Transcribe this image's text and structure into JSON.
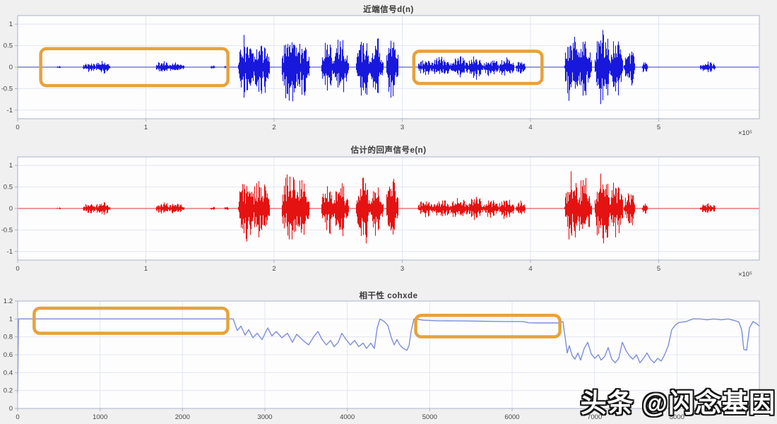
{
  "figure": {
    "background": "#f0f0f0",
    "plot_background": "#fdfdfe",
    "grid_color": "#e2e6f0",
    "border_color": "#a9b3c9",
    "tick_color": "#444444",
    "highlight_color": "#e7a23b"
  },
  "watermark": {
    "text": "头条 @闪念基因"
  },
  "chart_data": [
    {
      "type": "line",
      "id": "near-end-signal",
      "title": "近端信号d(n)",
      "color": "#1818dd",
      "xlim": [
        0,
        5.785
      ],
      "ylim": [
        -1.2,
        1.2
      ],
      "xticks": [
        0,
        1,
        2,
        3,
        4,
        5
      ],
      "xtick_labels": [
        "0",
        "1",
        "2",
        "3",
        "4",
        "5"
      ],
      "yticks": [
        -1,
        -0.5,
        0,
        0.5,
        1
      ],
      "ytick_labels": [
        "-1",
        "-0.5",
        "0",
        "0.5",
        "1"
      ],
      "exponent_label": "×10⁵",
      "bursts": [
        {
          "x": 0.32,
          "w": 0.03,
          "a": 0.03
        },
        {
          "x": 0.56,
          "w": 0.09,
          "a": 0.13
        },
        {
          "x": 0.66,
          "w": 0.1,
          "a": 0.16
        },
        {
          "x": 1.13,
          "w": 0.09,
          "a": 0.16
        },
        {
          "x": 1.23,
          "w": 0.11,
          "a": 0.13
        },
        {
          "x": 1.52,
          "w": 0.03,
          "a": 0.05
        },
        {
          "x": 1.63,
          "w": 0.03,
          "a": 0.06
        },
        {
          "x": 1.78,
          "w": 0.1,
          "a": 0.85
        },
        {
          "x": 1.89,
          "w": 0.12,
          "a": 0.72
        },
        {
          "x": 2.12,
          "w": 0.1,
          "a": 0.9
        },
        {
          "x": 2.22,
          "w": 0.09,
          "a": 0.78
        },
        {
          "x": 2.42,
          "w": 0.09,
          "a": 0.65
        },
        {
          "x": 2.52,
          "w": 0.1,
          "a": 0.72
        },
        {
          "x": 2.7,
          "w": 0.1,
          "a": 0.85
        },
        {
          "x": 2.8,
          "w": 0.08,
          "a": 0.72
        },
        {
          "x": 2.92,
          "w": 0.08,
          "a": 0.8
        },
        {
          "x": 3.18,
          "w": 0.1,
          "a": 0.22
        },
        {
          "x": 3.3,
          "w": 0.12,
          "a": 0.25
        },
        {
          "x": 3.44,
          "w": 0.12,
          "a": 0.28
        },
        {
          "x": 3.57,
          "w": 0.1,
          "a": 0.3
        },
        {
          "x": 3.69,
          "w": 0.1,
          "a": 0.24
        },
        {
          "x": 3.81,
          "w": 0.1,
          "a": 0.26
        },
        {
          "x": 3.92,
          "w": 0.06,
          "a": 0.2
        },
        {
          "x": 4.32,
          "w": 0.09,
          "a": 0.9
        },
        {
          "x": 4.42,
          "w": 0.09,
          "a": 0.82
        },
        {
          "x": 4.56,
          "w": 0.1,
          "a": 0.95
        },
        {
          "x": 4.67,
          "w": 0.08,
          "a": 0.78
        },
        {
          "x": 4.77,
          "w": 0.07,
          "a": 0.5
        },
        {
          "x": 4.89,
          "w": 0.04,
          "a": 0.15
        },
        {
          "x": 5.38,
          "w": 0.1,
          "a": 0.14
        }
      ],
      "highlights": [
        {
          "x0": 0.18,
          "x1": 1.64,
          "y0": -0.43,
          "y1": 0.43
        },
        {
          "x0": 3.09,
          "x1": 4.09,
          "y0": -0.38,
          "y1": 0.37
        }
      ]
    },
    {
      "type": "line",
      "id": "estimated-echo-signal",
      "title": "估计的回声信号e(n)",
      "color": "#e51212",
      "xlim": [
        0,
        5.785
      ],
      "ylim": [
        -1.2,
        1.2
      ],
      "xticks": [
        0,
        1,
        2,
        3,
        4,
        5
      ],
      "xtick_labels": [
        "0",
        "1",
        "2",
        "3",
        "4",
        "5"
      ],
      "yticks": [
        -1,
        -0.5,
        0,
        0.5,
        1
      ],
      "ytick_labels": [
        "-1",
        "-0.5",
        "0",
        "0.5",
        "1"
      ],
      "exponent_label": "×10⁵",
      "bursts": [
        {
          "x": 0.32,
          "w": 0.03,
          "a": 0.03
        },
        {
          "x": 0.56,
          "w": 0.09,
          "a": 0.13
        },
        {
          "x": 0.66,
          "w": 0.1,
          "a": 0.16
        },
        {
          "x": 1.13,
          "w": 0.09,
          "a": 0.16
        },
        {
          "x": 1.23,
          "w": 0.11,
          "a": 0.13
        },
        {
          "x": 1.52,
          "w": 0.03,
          "a": 0.05
        },
        {
          "x": 1.63,
          "w": 0.03,
          "a": 0.06
        },
        {
          "x": 1.78,
          "w": 0.1,
          "a": 0.85
        },
        {
          "x": 1.89,
          "w": 0.12,
          "a": 0.72
        },
        {
          "x": 2.12,
          "w": 0.1,
          "a": 0.9
        },
        {
          "x": 2.22,
          "w": 0.09,
          "a": 0.78
        },
        {
          "x": 2.42,
          "w": 0.09,
          "a": 0.65
        },
        {
          "x": 2.52,
          "w": 0.1,
          "a": 0.72
        },
        {
          "x": 2.7,
          "w": 0.1,
          "a": 0.85
        },
        {
          "x": 2.8,
          "w": 0.08,
          "a": 0.72
        },
        {
          "x": 2.92,
          "w": 0.08,
          "a": 0.8
        },
        {
          "x": 3.18,
          "w": 0.1,
          "a": 0.22
        },
        {
          "x": 3.3,
          "w": 0.12,
          "a": 0.25
        },
        {
          "x": 3.44,
          "w": 0.12,
          "a": 0.28
        },
        {
          "x": 3.57,
          "w": 0.1,
          "a": 0.3
        },
        {
          "x": 3.69,
          "w": 0.1,
          "a": 0.24
        },
        {
          "x": 3.81,
          "w": 0.1,
          "a": 0.26
        },
        {
          "x": 3.92,
          "w": 0.06,
          "a": 0.2
        },
        {
          "x": 4.32,
          "w": 0.09,
          "a": 0.9
        },
        {
          "x": 4.42,
          "w": 0.09,
          "a": 0.82
        },
        {
          "x": 4.56,
          "w": 0.1,
          "a": 0.95
        },
        {
          "x": 4.67,
          "w": 0.08,
          "a": 0.78
        },
        {
          "x": 4.77,
          "w": 0.07,
          "a": 0.5
        },
        {
          "x": 4.89,
          "w": 0.04,
          "a": 0.15
        },
        {
          "x": 5.38,
          "w": 0.1,
          "a": 0.14
        }
      ],
      "highlights": []
    },
    {
      "type": "line",
      "id": "coherence",
      "title": "相干性 cohxde",
      "color": "#7e8ed8",
      "xlim": [
        0,
        9000
      ],
      "ylim": [
        0,
        1.2
      ],
      "xticks": [
        0,
        1000,
        2000,
        3000,
        4000,
        5000,
        6000,
        7000,
        8000
      ],
      "xtick_labels": [
        "0",
        "1000",
        "2000",
        "3000",
        "4000",
        "5000",
        "6000",
        "7000",
        "8000"
      ],
      "yticks": [
        0,
        0.2,
        0.4,
        0.6,
        0.8,
        1,
        1.2
      ],
      "ytick_labels": [
        "0",
        "0.2",
        "0.4",
        "0.6",
        "0.8",
        "1",
        "1.2"
      ],
      "exponent_label": "",
      "points": [
        [
          0,
          0.18
        ],
        [
          10,
          1
        ],
        [
          2614,
          1
        ],
        [
          2666,
          0.87
        ],
        [
          2709,
          0.92
        ],
        [
          2760,
          0.82
        ],
        [
          2803,
          0.88
        ],
        [
          2854,
          0.79
        ],
        [
          2906,
          0.84
        ],
        [
          2966,
          0.77
        ],
        [
          3034,
          0.9
        ],
        [
          3086,
          0.81
        ],
        [
          3137,
          0.86
        ],
        [
          3206,
          0.79
        ],
        [
          3274,
          0.84
        ],
        [
          3334,
          0.74
        ],
        [
          3386,
          0.83
        ],
        [
          3463,
          0.76
        ],
        [
          3531,
          0.71
        ],
        [
          3591,
          0.8
        ],
        [
          3643,
          0.86
        ],
        [
          3694,
          0.77
        ],
        [
          3746,
          0.71
        ],
        [
          3797,
          0.76
        ],
        [
          3840,
          0.69
        ],
        [
          3891,
          0.74
        ],
        [
          3934,
          0.84
        ],
        [
          3986,
          0.77
        ],
        [
          4037,
          0.71
        ],
        [
          4088,
          0.76
        ],
        [
          4140,
          0.69
        ],
        [
          4191,
          0.73
        ],
        [
          4234,
          0.67
        ],
        [
          4286,
          0.73
        ],
        [
          4329,
          0.67
        ],
        [
          4363,
          0.9
        ],
        [
          4397,
          1
        ],
        [
          4449,
          0.97
        ],
        [
          4491,
          0.93
        ],
        [
          4534,
          0.79
        ],
        [
          4569,
          0.71
        ],
        [
          4603,
          0.77
        ],
        [
          4637,
          0.71
        ],
        [
          4680,
          0.67
        ],
        [
          4723,
          0.65
        ],
        [
          4749,
          0.7
        ],
        [
          4774,
          0.86
        ],
        [
          4809,
          1
        ],
        [
          4929,
          0.985
        ],
        [
          5100,
          0.98
        ],
        [
          5357,
          0.978
        ],
        [
          5614,
          0.975
        ],
        [
          5871,
          0.972
        ],
        [
          6129,
          0.97
        ],
        [
          6197,
          0.958
        ],
        [
          6300,
          0.955
        ],
        [
          6557,
          0.955
        ],
        [
          6617,
          0.97
        ],
        [
          6643,
          0.8
        ],
        [
          6669,
          0.62
        ],
        [
          6694,
          0.7
        ],
        [
          6729,
          0.59
        ],
        [
          6763,
          0.55
        ],
        [
          6797,
          0.62
        ],
        [
          6831,
          0.54
        ],
        [
          6874,
          0.67
        ],
        [
          6917,
          0.74
        ],
        [
          6960,
          0.61
        ],
        [
          7003,
          0.56
        ],
        [
          7046,
          0.6
        ],
        [
          7080,
          0.54
        ],
        [
          7123,
          0.58
        ],
        [
          7166,
          0.68
        ],
        [
          7209,
          0.55
        ],
        [
          7251,
          0.51
        ],
        [
          7294,
          0.56
        ],
        [
          7337,
          0.74
        ],
        [
          7380,
          0.65
        ],
        [
          7423,
          0.59
        ],
        [
          7466,
          0.55
        ],
        [
          7509,
          0.6
        ],
        [
          7551,
          0.51
        ],
        [
          7594,
          0.56
        ],
        [
          7637,
          0.62
        ],
        [
          7680,
          0.55
        ],
        [
          7723,
          0.51
        ],
        [
          7766,
          0.56
        ],
        [
          7809,
          0.53
        ],
        [
          7851,
          0.6
        ],
        [
          7894,
          0.7
        ],
        [
          7937,
          0.88
        ],
        [
          7980,
          0.93
        ],
        [
          8023,
          0.96
        ],
        [
          8109,
          0.97
        ],
        [
          8194,
          1
        ],
        [
          8280,
          1
        ],
        [
          8366,
          0.99
        ],
        [
          8451,
          1
        ],
        [
          8537,
          0.99
        ],
        [
          8623,
          1
        ],
        [
          8709,
          0.98
        ],
        [
          8751,
          0.965
        ],
        [
          8786,
          0.88
        ],
        [
          8811,
          0.66
        ],
        [
          8846,
          0.65
        ],
        [
          8880,
          0.9
        ],
        [
          8923,
          0.97
        ],
        [
          8966,
          0.95
        ],
        [
          9000,
          0.92
        ]
      ],
      "highlights": [
        {
          "x0": 200,
          "x1": 2550,
          "y0": 0.84,
          "y1": 1.12
        },
        {
          "x0": 4830,
          "x1": 6580,
          "y0": 0.8,
          "y1": 1.04
        }
      ]
    }
  ]
}
